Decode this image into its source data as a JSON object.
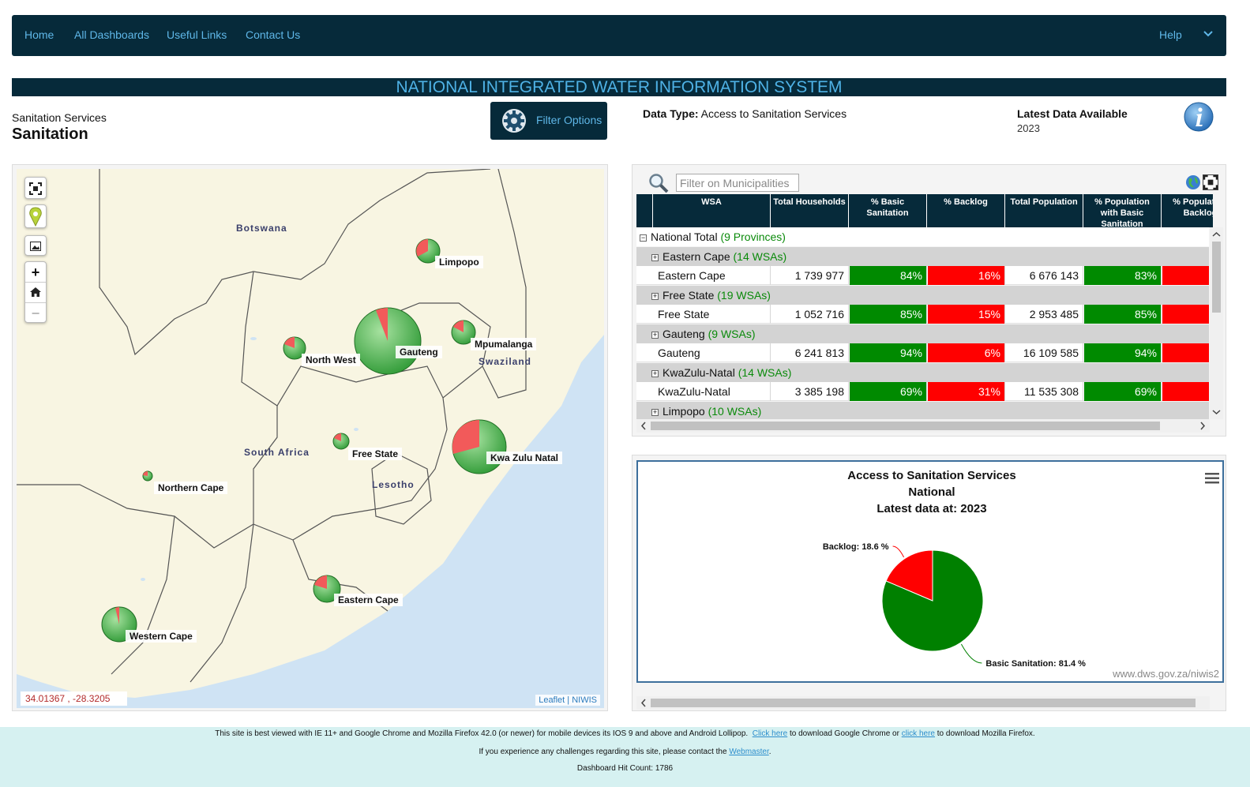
{
  "nav": {
    "links": [
      "Home",
      "All Dashboards",
      "Useful Links",
      "Contact Us"
    ],
    "help": "Help"
  },
  "title": "NATIONAL INTEGRATED WATER INFORMATION SYSTEM",
  "service": {
    "category": "Sanitation Services",
    "name": "Sanitation"
  },
  "filter": {
    "label": "Filter Options"
  },
  "data_type": {
    "label": "Data Type:",
    "value": "Access to Sanitation Services"
  },
  "latest": {
    "label": "Latest Data Available",
    "year": "2023"
  },
  "map": {
    "countries": [
      "Botswana",
      "South Africa",
      "Lesotho",
      "Swaziland"
    ],
    "provinces": [
      "Limpopo",
      "Gauteng",
      "Mpumalanga",
      "North West",
      "Free State",
      "Kwa Zulu Natal",
      "Northern Cape",
      "Eastern Cape",
      "Western Cape"
    ],
    "coords": "34.01367 , -28.3205",
    "attribution": [
      "Leaflet",
      "NIWIS"
    ]
  },
  "table": {
    "search_placeholder": "Filter on Municipalities",
    "headers": [
      "WSA",
      "Total Households",
      "% Basic Sanitation",
      "% Backlog",
      "Total Population",
      "% Population with Basic Sanitation",
      "% Population Backlog"
    ],
    "national": {
      "label": "National Total",
      "count": "(9 Provinces)"
    },
    "groups": [
      {
        "name": "Eastern Cape",
        "count": "(14 WSAs)",
        "row": [
          "Eastern Cape",
          "1 739 977",
          "84%",
          "16%",
          "6 676 143",
          "83%"
        ]
      },
      {
        "name": "Free State",
        "count": "(19 WSAs)",
        "row": [
          "Free State",
          "1 052 716",
          "85%",
          "15%",
          "2 953 485",
          "85%"
        ]
      },
      {
        "name": "Gauteng",
        "count": "(9 WSAs)",
        "row": [
          "Gauteng",
          "6 241 813",
          "94%",
          "6%",
          "16 109 585",
          "94%"
        ]
      },
      {
        "name": "KwaZulu-Natal",
        "count": "(14 WSAs)",
        "row": [
          "KwaZulu-Natal",
          "3 385 198",
          "69%",
          "31%",
          "11 535 308",
          "69%"
        ]
      },
      {
        "name": "Limpopo",
        "count": "(10 WSAs)",
        "row": null
      }
    ]
  },
  "chart_data": {
    "type": "pie",
    "title": "Access to Sanitation Services",
    "subtitle": "National",
    "subtitle2": "Latest data at: 2023",
    "slices": [
      {
        "name": "Basic Sanitation",
        "value": 81.4,
        "color": "#008000",
        "label": "Basic Sanitation: 81.4 %"
      },
      {
        "name": "Backlog",
        "value": 18.6,
        "color": "#ff0000",
        "label": "Backlog: 18.6 %"
      }
    ],
    "credit": "www.dws.gov.za/niwis2"
  },
  "footer": {
    "line1_a": "This site is best viewed with IE 11+ and Google Chrome and Mozilla Firefox 42.0 (or newer) for mobile devices its IOS 9 and above and Android Lollipop.",
    "link1": "Click here",
    "line1_b": "to download Google Chrome or",
    "link2": "click here",
    "line1_c": "to download Mozilla Firefox.",
    "line2_a": "If you experience any challenges regarding this site, please contact the",
    "link3": "Webmaster",
    "line3": "Dashboard Hit Count: 1786"
  }
}
